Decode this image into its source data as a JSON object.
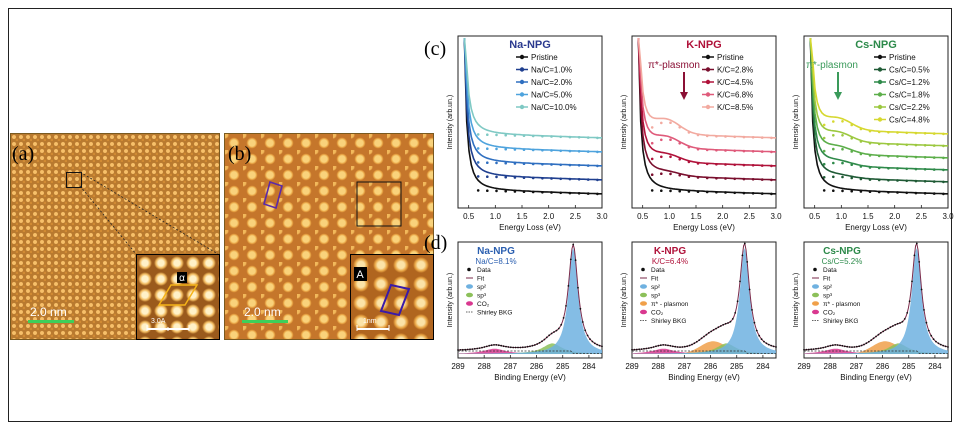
{
  "panels": {
    "a": {
      "tag": "(a)",
      "scalebar": "2.0 nm",
      "inset_scalebar": "3.0A",
      "inset_label": "α"
    },
    "b": {
      "tag": "(b)",
      "scalebar": "2.0 nm",
      "inset_scalebar": "1nm",
      "inset_label": "A"
    },
    "c": {
      "tag": "(c)"
    },
    "d": {
      "tag": "(d)"
    }
  },
  "chart_data": [
    {
      "type": "line",
      "title": "Na-NPG",
      "title_color": "#2b3a8f",
      "xlabel": "Energy Loss (eV)",
      "ylabel": "Intensity (arb.un.)",
      "xlim": [
        0.3,
        3.0
      ],
      "xticks": [
        "0.5",
        "1.0",
        "1.5",
        "2.0",
        "2.5",
        "3.0"
      ],
      "series": [
        {
          "name": "Pristine",
          "color": "#111111",
          "offset": 0
        },
        {
          "name": "Na/C=1.0%",
          "color": "#1f3f8f",
          "offset": 1
        },
        {
          "name": "Na/C=2.0%",
          "color": "#2f6fc0",
          "offset": 2
        },
        {
          "name": "Na/C=5.0%",
          "color": "#4ea3dd",
          "offset": 3
        },
        {
          "name": "Na/C=10.0%",
          "color": "#7fc9c4",
          "offset": 4
        }
      ]
    },
    {
      "type": "line",
      "title": "K-NPG",
      "title_color": "#b0123a",
      "xlabel": "Energy Loss (eV)",
      "ylabel": "Intensity (arb.un.)",
      "xlim": [
        0.3,
        3.0
      ],
      "xticks": [
        "0.5",
        "1.0",
        "1.5",
        "2.0",
        "2.5",
        "3.0"
      ],
      "annotation": "π*-plasmon",
      "annotation_color": "#8b1035",
      "series": [
        {
          "name": "Pristine",
          "color": "#111111",
          "offset": 0
        },
        {
          "name": "K/C=2.8%",
          "color": "#7a0f2e",
          "offset": 1
        },
        {
          "name": "K/C=4.5%",
          "color": "#b0123a",
          "offset": 2
        },
        {
          "name": "K/C=6.8%",
          "color": "#df5a7a",
          "offset": 3
        },
        {
          "name": "K/C=8.5%",
          "color": "#f2aaa0",
          "offset": 4
        }
      ]
    },
    {
      "type": "line",
      "title": "Cs-NPG",
      "title_color": "#2c8a4a",
      "xlabel": "Energy Loss (eV)",
      "ylabel": "Intensity (arb.un.)",
      "xlim": [
        0.3,
        3.0
      ],
      "xticks": [
        "0.5",
        "1.0",
        "1.5",
        "2.0",
        "2.5",
        "3.0"
      ],
      "annotation": "π*-plasmon",
      "annotation_color": "#3a9a5a",
      "series": [
        {
          "name": "Pristine",
          "color": "#111111",
          "offset": 0
        },
        {
          "name": "Cs/C=0.5%",
          "color": "#1f5a35",
          "offset": 1
        },
        {
          "name": "Cs/C=1.2%",
          "color": "#2f8a4a",
          "offset": 2
        },
        {
          "name": "Cs/C=1.8%",
          "color": "#5cae4a",
          "offset": 3
        },
        {
          "name": "Cs/C=2.2%",
          "color": "#9cc840",
          "offset": 4
        },
        {
          "name": "Cs/C=4.8%",
          "color": "#d6d830",
          "offset": 5
        }
      ]
    },
    {
      "type": "area",
      "title": "Na-NPG",
      "title_color": "#2b5fb0",
      "subtitle": "Na/C=8.1%",
      "xlabel": "Binding Energy (eV)",
      "ylabel": "Intensity (arb.un.)",
      "xlim": [
        289,
        283.5
      ],
      "xticks": [
        "289",
        "288",
        "287",
        "286",
        "285",
        "284"
      ],
      "legend": [
        "Data",
        "Fit",
        "sp²",
        "sp³",
        "CO₂",
        "Shirley BKG"
      ],
      "peaks": {
        "sp2_center": 284.6,
        "sp3_center": 285.4,
        "co2_center": 287.6,
        "plasmon_center": null
      }
    },
    {
      "type": "area",
      "title": "K-NPG",
      "title_color": "#b0123a",
      "subtitle": "K/C=6.4%",
      "xlabel": "Binding Energy (eV)",
      "ylabel": "Intensity (arb.un.)",
      "xlim": [
        289,
        283.5
      ],
      "xticks": [
        "289",
        "288",
        "287",
        "286",
        "285",
        "284"
      ],
      "legend": [
        "Data",
        "Fit",
        "sp²",
        "sp³",
        "π* - plasmon",
        "CO₂",
        "Shirley BKG"
      ],
      "peaks": {
        "sp2_center": 284.7,
        "sp3_center": 285.4,
        "co2_center": 287.8,
        "plasmon_center": 285.9
      }
    },
    {
      "type": "area",
      "title": "Cs-NPG",
      "title_color": "#2c8a4a",
      "subtitle": "Cs/C=5.2%",
      "xlabel": "Binding Energy (eV)",
      "ylabel": "Intensity (arb.un.)",
      "xlim": [
        289,
        283.5
      ],
      "xticks": [
        "289",
        "288",
        "287",
        "286",
        "285",
        "284"
      ],
      "legend": [
        "Data",
        "Fit",
        "sp²",
        "sp³",
        "π* - plasmon",
        "CO₂",
        "Shirley BKG"
      ],
      "peaks": {
        "sp2_center": 284.7,
        "sp3_center": 285.4,
        "co2_center": 287.8,
        "plasmon_center": 285.9
      }
    }
  ],
  "colors": {
    "sp2": "#6fb1e0",
    "sp3": "#8cc05a",
    "plasmon": "#f0a04a",
    "co2": "#d9388f",
    "data": "#111111",
    "fit": "#7a2a4a"
  }
}
